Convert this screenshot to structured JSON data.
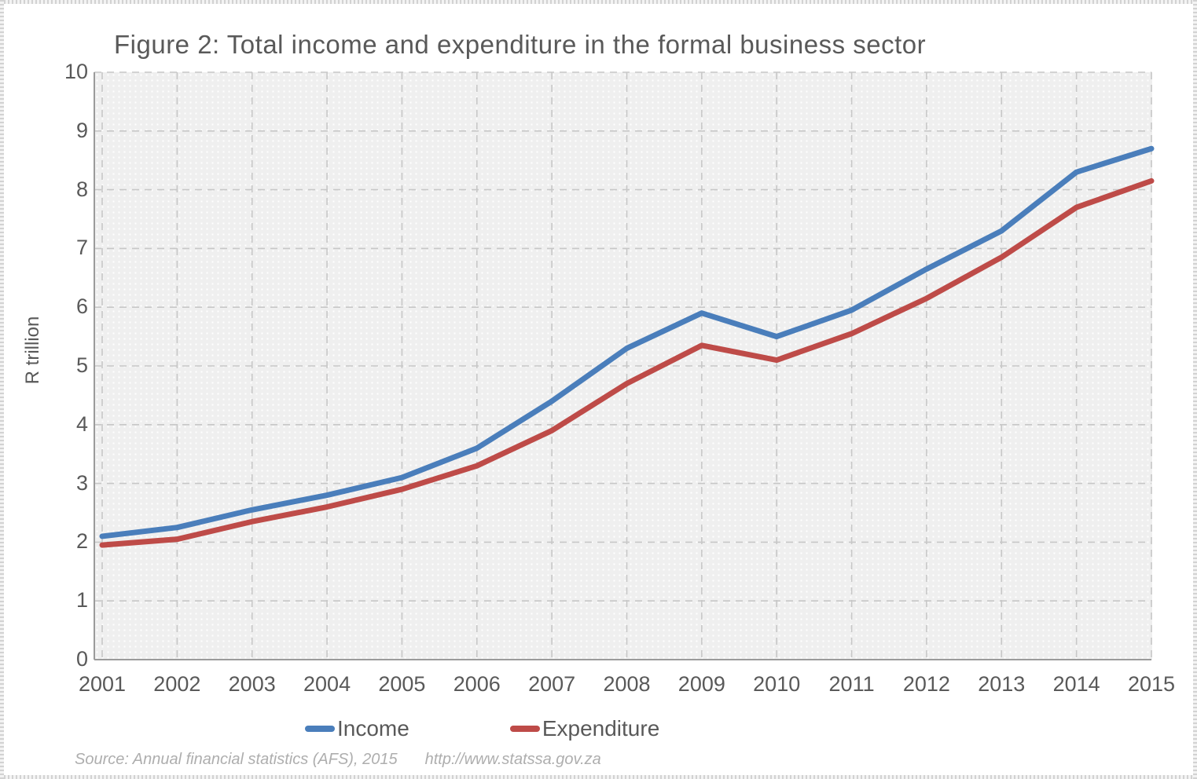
{
  "chart": {
    "title": "Figure 2: Total income and expenditure in the formal business sector",
    "y_axis_title": "R trillion",
    "source_text": "Source: Annual financial statistics (AFS), 2015",
    "source_url": "http://www.statssa.gov.za",
    "colors": {
      "income": "#4a7ebb",
      "expenditure": "#be4b48",
      "grid": "#c7c7c7",
      "axis": "#9b9b9b",
      "text": "#595959",
      "source": "#aeaeae",
      "plot_background": "#efefef"
    }
  },
  "chart_data": {
    "type": "line",
    "title": "Figure 2: Total income and expenditure in the formal business sector",
    "xlabel": "",
    "ylabel": "R trillion",
    "x": [
      2001,
      2002,
      2003,
      2004,
      2005,
      2006,
      2007,
      2008,
      2009,
      2010,
      2011,
      2012,
      2013,
      2014,
      2015
    ],
    "series": [
      {
        "name": "Income",
        "color": "#4a7ebb",
        "values": [
          2.1,
          2.25,
          2.55,
          2.8,
          3.1,
          3.6,
          4.4,
          5.3,
          5.9,
          5.5,
          5.95,
          6.65,
          7.3,
          8.3,
          8.7
        ]
      },
      {
        "name": "Expenditure",
        "color": "#be4b48",
        "values": [
          1.95,
          2.05,
          2.35,
          2.6,
          2.9,
          3.3,
          3.9,
          4.7,
          5.35,
          5.1,
          5.55,
          6.15,
          6.85,
          7.7,
          8.15
        ]
      }
    ],
    "ylim": [
      0,
      10
    ],
    "y_ticks": [
      0,
      1,
      2,
      3,
      4,
      5,
      6,
      7,
      8,
      9,
      10
    ],
    "grid": true,
    "grid_style": "dashed",
    "legend_position": "bottom"
  }
}
